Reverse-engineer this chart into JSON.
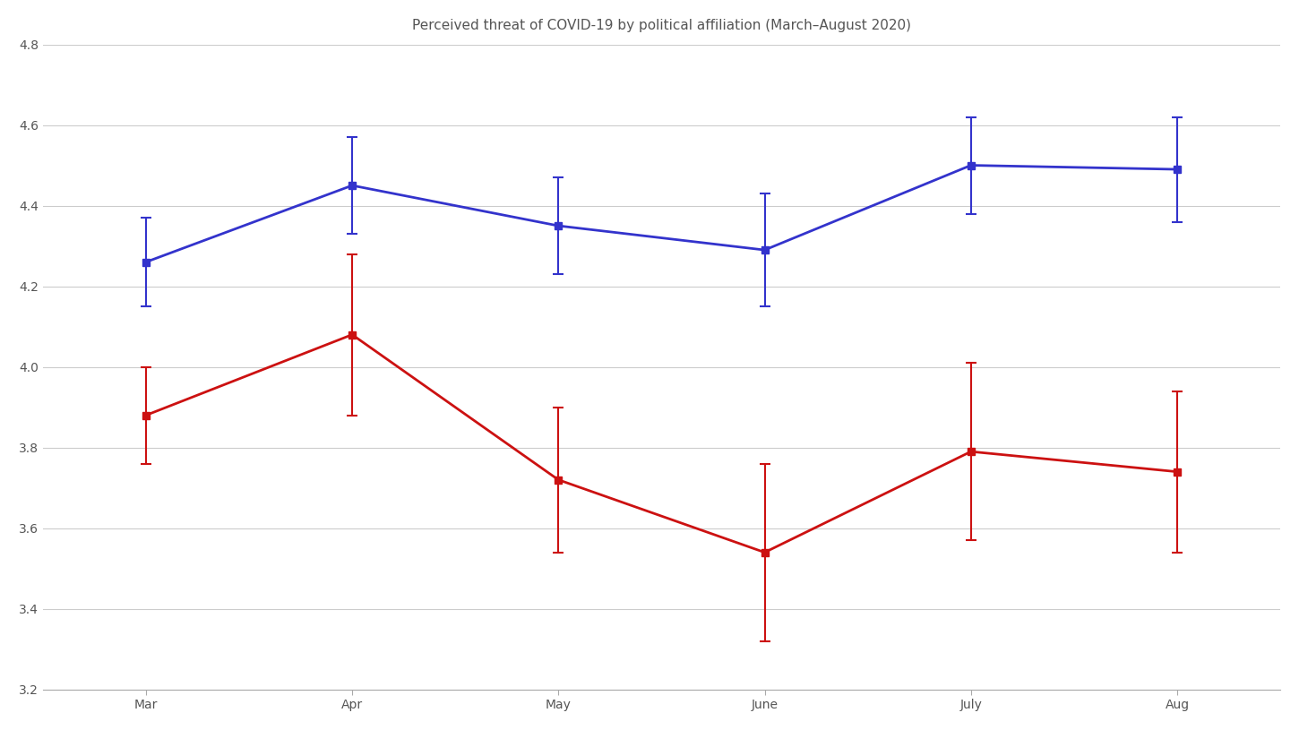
{
  "title": "Perceived threat of COVID-19 by political affiliation (March–August 2020)",
  "months": [
    "Mar",
    "Apr",
    "May",
    "June",
    "July",
    "Aug"
  ],
  "blue_values": [
    4.26,
    4.45,
    4.35,
    4.29,
    4.5,
    4.49
  ],
  "blue_errors": [
    0.11,
    0.12,
    0.12,
    0.14,
    0.12,
    0.13
  ],
  "red_values": [
    3.88,
    4.08,
    3.72,
    3.54,
    3.79,
    3.74
  ],
  "red_errors": [
    0.12,
    0.2,
    0.18,
    0.22,
    0.22,
    0.2
  ],
  "blue_color": "#3333cc",
  "red_color": "#cc1111",
  "ylim": [
    3.2,
    4.8
  ],
  "yticks": [
    3.2,
    3.4,
    3.6,
    3.8,
    4.0,
    4.2,
    4.4,
    4.6,
    4.8
  ],
  "background_color": "#ffffff",
  "title_fontsize": 11,
  "tick_fontsize": 10,
  "line_width": 2.0,
  "marker_size": 6,
  "marker_style": "s"
}
